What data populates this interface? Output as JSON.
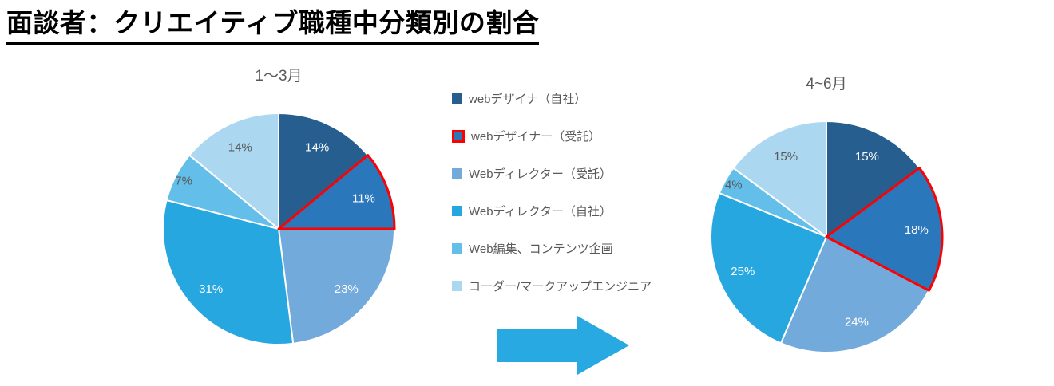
{
  "page_title": "面談者：クリエイティブ職種中分類別の割合",
  "arrow_color": "#29A9E1",
  "chart_data": {
    "type": "pie",
    "chart_count": 2,
    "categories": [
      "webデザイナ（自社）",
      "webデザイナー（受託）",
      "Webディレクター（受託）",
      "Webディレクター（自社）",
      "Web編集、コンテンツ企画",
      "コーダー/マークアップエンジニア"
    ],
    "colors": [
      "#255E8F",
      "#2A77BC",
      "#72AADC",
      "#27A7E0",
      "#63BEE9",
      "#ABD7F0"
    ],
    "label_text_colors": [
      "#FFFFFF",
      "#FFFFFF",
      "#FFFFFF",
      "#FFFFFF",
      "#595959",
      "#595959"
    ],
    "highlight_index": 1,
    "highlight_outline_color": "#FF0000",
    "slice_border_color": "#FFFFFF",
    "legend_position": "center",
    "start_angle_deg": -90,
    "direction": "clockwise",
    "pies": [
      {
        "title": "1〜3月",
        "values": [
          14,
          11,
          23,
          31,
          7,
          14
        ],
        "labels": [
          "14%",
          "11%",
          "23%",
          "31%",
          "7%",
          "14%"
        ]
      },
      {
        "title": "4~6月",
        "values": [
          15,
          18,
          24,
          25,
          4,
          15
        ],
        "labels": [
          "15%",
          "18%",
          "24%",
          "25%",
          "4%",
          "15%"
        ]
      }
    ]
  }
}
